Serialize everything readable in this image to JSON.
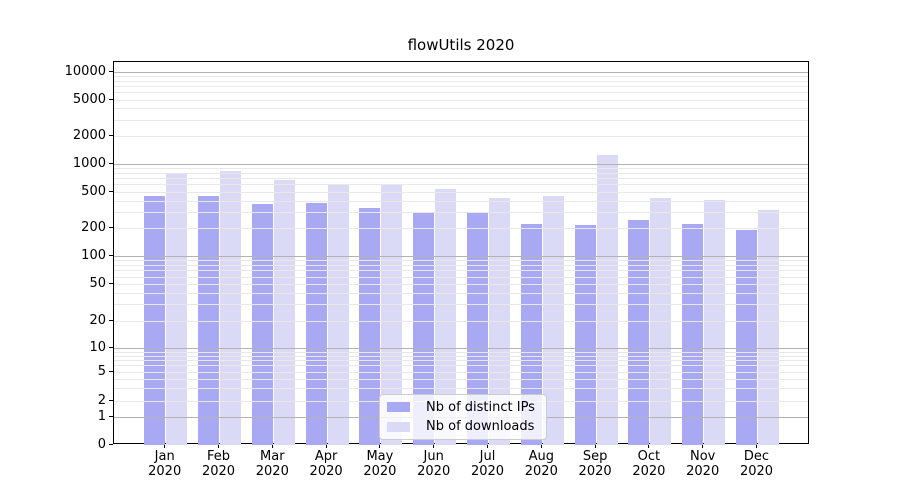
{
  "chart_data": {
    "type": "bar",
    "title": "flowUtils 2020",
    "categories": [
      "Jan",
      "Feb",
      "Mar",
      "Apr",
      "May",
      "Jun",
      "Jul",
      "Aug",
      "Sep",
      "Oct",
      "Nov",
      "Dec"
    ],
    "year": "2020",
    "series": [
      {
        "name": "Nb of distinct IPs",
        "color": "#a9a9f3",
        "values": [
          460,
          450,
          370,
          378,
          340,
          300,
          300,
          225,
          222,
          250,
          225,
          195
        ]
      },
      {
        "name": "Nb of downloads",
        "color": "#dadaf6",
        "values": [
          800,
          855,
          670,
          620,
          600,
          540,
          430,
          460,
          1280,
          430,
          410,
          320
        ]
      }
    ],
    "xlabel": "",
    "ylabel": "",
    "yscale": "symlog",
    "yticks": [
      0,
      1,
      2,
      5,
      10,
      20,
      50,
      100,
      200,
      500,
      1000,
      2000,
      5000,
      10000
    ],
    "ylim": [
      0,
      13000
    ],
    "grid": true,
    "grid_over_bars": true,
    "legend_position": "lower center inside axes"
  },
  "colors": {
    "bar_distinct_ips": "#a9a9f3",
    "bar_downloads": "#dadaf6",
    "grid_major": "#b3b3b3",
    "grid_minor": "#e8e8e8",
    "spine": "#000000",
    "background": "#ffffff"
  }
}
